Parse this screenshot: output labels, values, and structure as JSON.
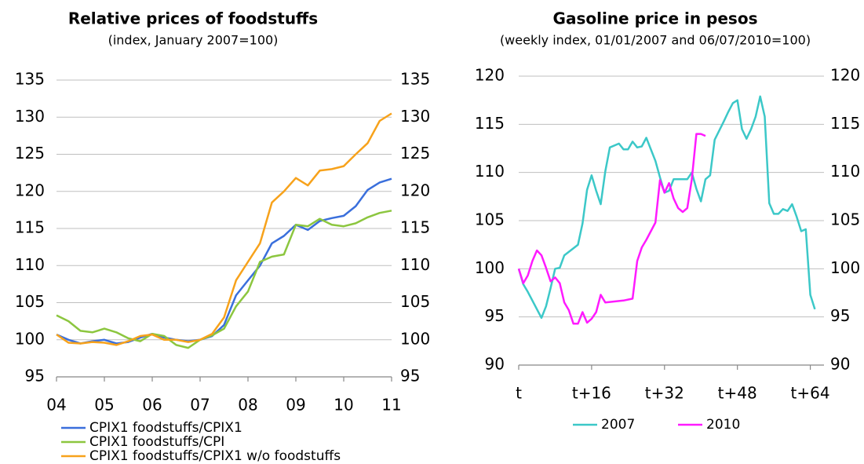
{
  "chart_data": [
    {
      "type": "line",
      "title": "Relative prices of foodstuffs",
      "subtitle": "(index, January 2007=100)",
      "x": [
        2004,
        2004.25,
        2004.5,
        2004.75,
        2005,
        2005.25,
        2005.5,
        2005.75,
        2006,
        2006.25,
        2006.5,
        2006.75,
        2007,
        2007.25,
        2007.5,
        2007.75,
        2008,
        2008.25,
        2008.5,
        2008.75,
        2009,
        2009.25,
        2009.5,
        2009.75,
        2010,
        2010.25,
        2010.5,
        2010.75,
        2011
      ],
      "xlim": [
        2004,
        2011
      ],
      "xticks": [
        {
          "value": 2004,
          "label": "04"
        },
        {
          "value": 2005,
          "label": "05"
        },
        {
          "value": 2006,
          "label": "06"
        },
        {
          "value": 2007,
          "label": "07"
        },
        {
          "value": 2008,
          "label": "08"
        },
        {
          "value": 2009,
          "label": "09"
        },
        {
          "value": 2010,
          "label": "10"
        },
        {
          "value": 2011,
          "label": "11"
        }
      ],
      "ylim": [
        95,
        135
      ],
      "yticks": [
        95,
        100,
        105,
        110,
        115,
        120,
        125,
        130,
        135
      ],
      "y2lim": [
        95,
        135
      ],
      "y2ticks": [
        95,
        100,
        105,
        110,
        115,
        120,
        125,
        130,
        135
      ],
      "grid": true,
      "legend": "bottom",
      "series": [
        {
          "name": "CPIX1 foodstuffs/CPIX1",
          "color": "#3a6fdc",
          "values": [
            100.7,
            100,
            99.5,
            99.8,
            100,
            99.5,
            99.7,
            100.3,
            100.8,
            100.3,
            100,
            99.8,
            100,
            100.5,
            102,
            106,
            108,
            110,
            113,
            114,
            115.5,
            114.8,
            116,
            116.4,
            116.7,
            118,
            120.2,
            121.2,
            121.7
          ]
        },
        {
          "name": "CPIX1 foodstuffs/CPI",
          "color": "#8cc63f",
          "values": [
            103.3,
            102.5,
            101.2,
            101,
            101.5,
            101,
            100.2,
            99.8,
            100.8,
            100.5,
            99.3,
            98.9,
            100,
            100.6,
            101.5,
            104.5,
            106.5,
            110.5,
            111.2,
            111.5,
            115.5,
            115.3,
            116.3,
            115.5,
            115.3,
            115.7,
            116.5,
            117.1,
            117.4
          ]
        },
        {
          "name": "CPIX1 foodstuffs/CPIX1 w/o foodstuffs",
          "color": "#f7a21b",
          "values": [
            100.7,
            99.6,
            99.5,
            99.7,
            99.6,
            99.3,
            99.8,
            100.5,
            100.7,
            100,
            100,
            99.7,
            100,
            100.8,
            103,
            108,
            110.5,
            113,
            118.5,
            120,
            121.8,
            120.8,
            122.8,
            123,
            123.4,
            125,
            126.5,
            129.5,
            130.5
          ]
        }
      ]
    },
    {
      "type": "line",
      "title": "Gasoline price in pesos",
      "subtitle": "(weekly index, 01/01/2007 and 06/07/2010=100)",
      "xlim": [
        0,
        67
      ],
      "xticks": [
        {
          "value": 0,
          "label": "t"
        },
        {
          "value": 16,
          "label": "t+16"
        },
        {
          "value": 32,
          "label": "t+32"
        },
        {
          "value": 48,
          "label": "t+48"
        },
        {
          "value": 64,
          "label": "t+64"
        }
      ],
      "ylim": [
        90,
        120
      ],
      "yticks": [
        90,
        95,
        100,
        105,
        110,
        115,
        120
      ],
      "y2lim": [
        90,
        120
      ],
      "y2ticks": [
        90,
        95,
        100,
        105,
        110,
        115,
        120
      ],
      "grid": true,
      "legend": "bottom",
      "series": [
        {
          "name": "2007",
          "color": "#3cc8c8",
          "x": [
            0,
            1,
            2,
            3,
            5,
            6,
            7,
            8,
            9,
            10,
            13,
            14,
            15,
            16,
            17,
            18,
            19,
            20,
            22,
            23,
            24,
            25,
            26,
            27,
            28,
            30,
            31,
            32,
            33,
            34,
            36,
            37,
            38,
            39,
            40,
            41,
            42,
            43,
            45,
            46,
            47,
            48,
            49,
            50,
            51,
            52,
            53,
            54,
            55,
            56,
            57,
            58,
            59,
            60,
            61,
            62,
            63,
            64,
            65
          ],
          "values": [
            100,
            98.4,
            97.6,
            96.7,
            94.9,
            96.1,
            98,
            100,
            100.1,
            101.4,
            102.5,
            104.7,
            108.2,
            109.7,
            108.1,
            106.7,
            110.1,
            112.6,
            113,
            112.4,
            112.4,
            113.2,
            112.6,
            112.7,
            113.6,
            111.2,
            109.5,
            107.9,
            108.1,
            109.3,
            109.3,
            109.3,
            110,
            108.3,
            107,
            109.3,
            109.7,
            113.4,
            115.3,
            116.3,
            117.2,
            117.5,
            114.5,
            113.5,
            114.5,
            115.8,
            117.9,
            115.8,
            106.8,
            105.7,
            105.7,
            106.2,
            106,
            106.7,
            105.4,
            103.9,
            104.1,
            97.3,
            95.8
          ]
        },
        {
          "name": "2010",
          "color": "#ff1aff",
          "x": [
            0,
            1,
            2,
            3,
            4,
            5,
            6,
            7,
            8,
            9,
            10,
            11,
            12,
            13,
            14,
            15,
            16,
            17,
            18,
            19,
            21,
            23,
            25,
            26,
            27,
            28,
            30,
            31,
            32,
            33,
            34,
            35,
            36,
            37,
            38,
            39,
            40,
            41
          ],
          "values": [
            100,
            98.5,
            99.3,
            100.8,
            101.9,
            101.4,
            100.1,
            98.7,
            99.1,
            98.5,
            96.5,
            95.7,
            94.3,
            94.3,
            95.5,
            94.4,
            94.8,
            95.5,
            97.3,
            96.5,
            96.6,
            96.7,
            96.9,
            100.8,
            102.2,
            103,
            104.8,
            109.2,
            107.9,
            108.9,
            107.3,
            106.3,
            105.9,
            106.3,
            109.3,
            114,
            114,
            113.8
          ]
        }
      ]
    }
  ]
}
